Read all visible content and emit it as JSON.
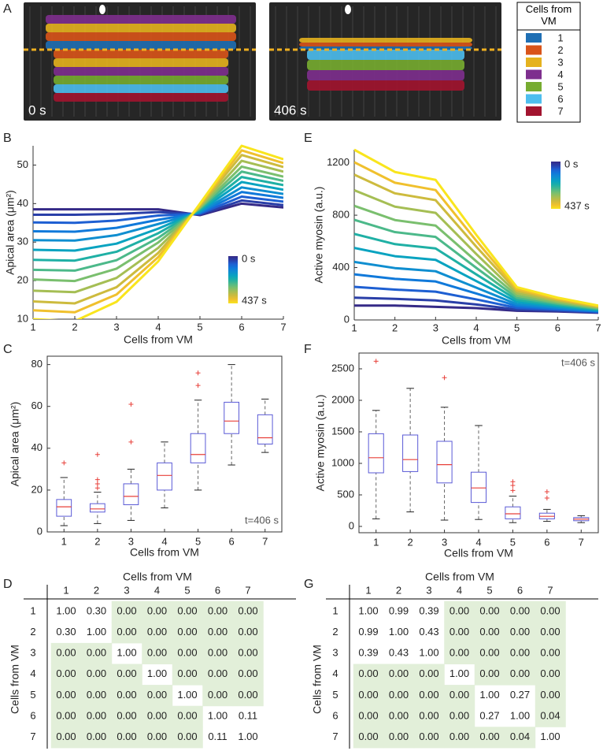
{
  "panel_labels": [
    "A",
    "B",
    "C",
    "D",
    "E",
    "F",
    "G"
  ],
  "panel_a": {
    "image_labels": [
      "0 s",
      "406 s"
    ],
    "legend_title": "Cells from VM",
    "legend": [
      {
        "label": "1",
        "color": "#1f6fb4"
      },
      {
        "label": "2",
        "color": "#d9541a"
      },
      {
        "label": "3",
        "color": "#e5b21e"
      },
      {
        "label": "4",
        "color": "#7e2f8e"
      },
      {
        "label": "5",
        "color": "#77ac30"
      },
      {
        "label": "6",
        "color": "#4dbeee"
      },
      {
        "label": "7",
        "color": "#a2142f"
      }
    ]
  },
  "chart_data": [
    {
      "type": "line",
      "xlabel": "Cells from VM",
      "ylabel": "Apical area (μm²)",
      "x": [
        1,
        2,
        3,
        4,
        5,
        6,
        7
      ],
      "xlim": [
        1,
        7
      ],
      "xticks": [
        1,
        2,
        3,
        4,
        5,
        6,
        7
      ],
      "ylim": [
        10,
        55
      ],
      "yticks": [
        10,
        20,
        30,
        40,
        50
      ],
      "colorbar_labels": [
        "0 s",
        "437 s"
      ],
      "series": [
        {
          "color": "#352a87",
          "values": [
            38.5,
            38.5,
            38.5,
            38.5,
            37,
            40,
            39
          ]
        },
        {
          "color": "#2a3fa8",
          "values": [
            37.1,
            37.1,
            37.3,
            37.8,
            37.2,
            40.8,
            39.6
          ]
        },
        {
          "color": "#1e5fd2",
          "values": [
            35.1,
            35.0,
            35.6,
            36.9,
            37.4,
            41.8,
            40.5
          ]
        },
        {
          "color": "#1079da",
          "values": [
            32.8,
            32.7,
            33.7,
            35.8,
            37.6,
            43,
            41.5
          ]
        },
        {
          "color": "#0f8ed0",
          "values": [
            30.5,
            30.4,
            31.8,
            34.7,
            37.8,
            44.2,
            42.5
          ]
        },
        {
          "color": "#09a3c0",
          "values": [
            28,
            27.8,
            29.6,
            33.5,
            38.1,
            45.6,
            43.6
          ]
        },
        {
          "color": "#1fb0a5",
          "values": [
            25.4,
            25.2,
            27.5,
            32.3,
            38.4,
            46.9,
            44.8
          ]
        },
        {
          "color": "#4cb98a",
          "values": [
            22.8,
            22.6,
            25.3,
            31.1,
            38.7,
            48.3,
            45.9
          ]
        },
        {
          "color": "#7abf6e",
          "values": [
            20.3,
            19.9,
            23.1,
            29.9,
            38.9,
            49.6,
            47
          ]
        },
        {
          "color": "#a5be54",
          "values": [
            17.4,
            17,
            20.7,
            28.5,
            39.2,
            51.1,
            48.3
          ]
        },
        {
          "color": "#cdbb3e",
          "values": [
            14.6,
            14.1,
            18.3,
            27.2,
            39.5,
            52.6,
            49.5
          ]
        },
        {
          "color": "#f0c02d",
          "values": [
            12.3,
            11.8,
            16.4,
            26.1,
            39.8,
            53.8,
            50.5
          ]
        },
        {
          "color": "#f9e51d",
          "values": [
            10,
            9.5,
            14.5,
            25,
            40,
            55,
            51.5
          ]
        }
      ]
    },
    {
      "type": "line",
      "xlabel": "Cells from VM",
      "ylabel": "Active myosin (a.u.)",
      "x": [
        1,
        2,
        3,
        4,
        5,
        6,
        7
      ],
      "xlim": [
        1,
        7
      ],
      "xticks": [
        1,
        2,
        3,
        4,
        5,
        6,
        7
      ],
      "ylim": [
        0,
        1300
      ],
      "yticks": [
        0,
        400,
        800,
        1200
      ],
      "colorbar_labels": [
        "0 s",
        "437 s"
      ],
      "series": [
        {
          "color": "#352a87",
          "values": [
            110,
            110,
            100,
            90,
            70,
            65,
            55
          ]
        },
        {
          "color": "#2a3fa8",
          "values": [
            170,
            161,
            149,
            118,
            79,
            70,
            58
          ]
        },
        {
          "color": "#1e5fd2",
          "values": [
            253,
            232,
            216,
            157,
            92,
            78,
            62
          ]
        },
        {
          "color": "#1079da",
          "values": [
            348,
            314,
            294,
            202,
            106,
            86,
            66
          ]
        },
        {
          "color": "#0f8ed0",
          "values": [
            443,
            396,
            372,
            247,
            120,
            94,
            70
          ]
        },
        {
          "color": "#09a3c0",
          "values": [
            550,
            487,
            459,
            297,
            137,
            104,
            75
          ]
        },
        {
          "color": "#1fb0a5",
          "values": [
            657,
            579,
            546,
            348,
            153,
            113,
            80
          ]
        },
        {
          "color": "#4cb98a",
          "values": [
            765,
            671,
            634,
            398,
            169,
            123,
            85
          ]
        },
        {
          "color": "#7abf6e",
          "values": [
            872,
            763,
            721,
            448,
            185,
            132,
            90
          ]
        },
        {
          "color": "#a5be54",
          "values": [
            991,
            865,
            818,
            504,
            203,
            143,
            96
          ]
        },
        {
          "color": "#cdbb3e",
          "values": [
            1110,
            967,
            915,
            560,
            221,
            153,
            101
          ]
        },
        {
          "color": "#f0c02d",
          "values": [
            1205,
            1048,
            992,
            605,
            236,
            162,
            106
          ]
        },
        {
          "color": "#f9e51d",
          "values": [
            1300,
            1130,
            1070,
            650,
            250,
            170,
            110
          ]
        }
      ]
    },
    {
      "type": "box",
      "xlabel": "Cells from VM",
      "ylabel": "Apical area (μm²)",
      "annotation": "t=406 s",
      "categories": [
        "1",
        "2",
        "3",
        "4",
        "5",
        "6",
        "7"
      ],
      "ylim": [
        0,
        84
      ],
      "yticks": [
        0,
        20,
        40,
        60,
        80
      ],
      "box_color": "#5a5ad6",
      "median_color": "#e8403a",
      "whisker_low": [
        3,
        4,
        5.5,
        11.5,
        20,
        32,
        38
      ],
      "q1": [
        7.5,
        9.5,
        13,
        20,
        33,
        47,
        42
      ],
      "median": [
        12,
        11,
        17,
        27,
        37,
        53,
        45
      ],
      "q3": [
        15.5,
        13.5,
        23,
        33,
        47,
        62,
        56
      ],
      "whisker_high": [
        26,
        19,
        30,
        43,
        63,
        80,
        63.5
      ],
      "outliers": [
        [
          33
        ],
        [
          21,
          23,
          25,
          37
        ],
        [
          43,
          61
        ],
        [],
        [
          70,
          76
        ],
        [],
        []
      ]
    },
    {
      "type": "box",
      "xlabel": "Cells from VM",
      "ylabel": "Active myosin (a.u.)",
      "annotation": "t=406 s",
      "categories": [
        "1",
        "2",
        "3",
        "4",
        "5",
        "6",
        "7"
      ],
      "ylim": [
        -100,
        2750
      ],
      "yticks": [
        0,
        500,
        1000,
        1500,
        2000,
        2500
      ],
      "box_color": "#5a5ad6",
      "median_color": "#e8403a",
      "whisker_low": [
        120,
        230,
        100,
        110,
        60,
        80,
        60
      ],
      "q1": [
        850,
        870,
        690,
        380,
        120,
        120,
        90
      ],
      "median": [
        1090,
        1060,
        980,
        610,
        200,
        160,
        115
      ],
      "q3": [
        1470,
        1450,
        1350,
        860,
        310,
        210,
        140
      ],
      "whisker_high": [
        1840,
        2190,
        1890,
        1600,
        480,
        270,
        170
      ],
      "outliers": [
        [
          2620
        ],
        [],
        [
          2360
        ],
        [],
        [
          570,
          650,
          710
        ],
        [
          450,
          550
        ],
        []
      ]
    }
  ],
  "tables": [
    {
      "title": "Cells from VM",
      "row_title": "Cells from VM",
      "columns": [
        "1",
        "2",
        "3",
        "4",
        "5",
        "6",
        "7"
      ],
      "highlight_color": "#e2efd9",
      "rows": [
        {
          "label": "1",
          "cells": [
            "1.00",
            "0.30",
            "0.00",
            "0.00",
            "0.00",
            "0.00",
            "0.00"
          ]
        },
        {
          "label": "2",
          "cells": [
            "0.30",
            "1.00",
            "0.00",
            "0.00",
            "0.00",
            "0.00",
            "0.00"
          ]
        },
        {
          "label": "3",
          "cells": [
            "0.00",
            "0.00",
            "1.00",
            "0.00",
            "0.00",
            "0.00",
            "0.00"
          ]
        },
        {
          "label": "4",
          "cells": [
            "0.00",
            "0.00",
            "0.00",
            "1.00",
            "0.00",
            "0.00",
            "0.00"
          ]
        },
        {
          "label": "5",
          "cells": [
            "0.00",
            "0.00",
            "0.00",
            "0.00",
            "1.00",
            "0.00",
            "0.00"
          ]
        },
        {
          "label": "6",
          "cells": [
            "0.00",
            "0.00",
            "0.00",
            "0.00",
            "0.00",
            "1.00",
            "0.11"
          ]
        },
        {
          "label": "7",
          "cells": [
            "0.00",
            "0.00",
            "0.00",
            "0.00",
            "0.00",
            "0.11",
            "1.00"
          ]
        }
      ],
      "highlighted": [
        [
          0,
          0,
          1,
          1,
          1,
          1,
          1
        ],
        [
          0,
          0,
          1,
          1,
          1,
          1,
          1
        ],
        [
          1,
          1,
          0,
          1,
          1,
          1,
          1
        ],
        [
          1,
          1,
          1,
          0,
          1,
          1,
          1
        ],
        [
          1,
          1,
          1,
          1,
          0,
          1,
          1
        ],
        [
          1,
          1,
          1,
          1,
          1,
          0,
          0
        ],
        [
          1,
          1,
          1,
          1,
          1,
          0,
          0
        ]
      ]
    },
    {
      "title": "Cells from VM",
      "row_title": "Cells from VM",
      "columns": [
        "1",
        "2",
        "3",
        "4",
        "5",
        "6",
        "7"
      ],
      "highlight_color": "#e2efd9",
      "rows": [
        {
          "label": "1",
          "cells": [
            "1.00",
            "0.99",
            "0.39",
            "0.00",
            "0.00",
            "0.00",
            "0.00"
          ]
        },
        {
          "label": "2",
          "cells": [
            "0.99",
            "1.00",
            "0.43",
            "0.00",
            "0.00",
            "0.00",
            "0.00"
          ]
        },
        {
          "label": "3",
          "cells": [
            "0.39",
            "0.43",
            "1.00",
            "0.00",
            "0.00",
            "0.00",
            "0.00"
          ]
        },
        {
          "label": "4",
          "cells": [
            "0.00",
            "0.00",
            "0.00",
            "1.00",
            "0.00",
            "0.00",
            "0.00"
          ]
        },
        {
          "label": "5",
          "cells": [
            "0.00",
            "0.00",
            "0.00",
            "0.00",
            "1.00",
            "0.27",
            "0.00"
          ]
        },
        {
          "label": "6",
          "cells": [
            "0.00",
            "0.00",
            "0.00",
            "0.00",
            "0.27",
            "1.00",
            "0.04"
          ]
        },
        {
          "label": "7",
          "cells": [
            "0.00",
            "0.00",
            "0.00",
            "0.00",
            "0.00",
            "0.04",
            "1.00"
          ]
        }
      ],
      "highlighted": [
        [
          0,
          0,
          0,
          1,
          1,
          1,
          1
        ],
        [
          0,
          0,
          0,
          1,
          1,
          1,
          1
        ],
        [
          0,
          0,
          0,
          1,
          1,
          1,
          1
        ],
        [
          1,
          1,
          1,
          0,
          1,
          1,
          1
        ],
        [
          1,
          1,
          1,
          1,
          0,
          0,
          1
        ],
        [
          1,
          1,
          1,
          1,
          0,
          0,
          1
        ],
        [
          1,
          1,
          1,
          1,
          1,
          1,
          0
        ]
      ]
    }
  ]
}
